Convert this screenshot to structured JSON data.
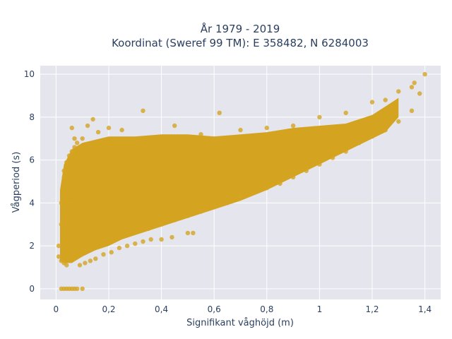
{
  "chart_data": {
    "type": "scatter",
    "title_lines": [
      "År 1979 - 2019",
      "Koordinat (Sweref 99 TM): E 358482, N 6284003"
    ],
    "xlabel": "Signifikant våghöjd (m)",
    "ylabel": "Vågperiod (s)",
    "xlim": [
      -0.06,
      1.46
    ],
    "ylim": [
      -0.5,
      10.4
    ],
    "x_ticks": [
      0,
      0.2,
      0.4,
      0.6,
      0.8,
      1,
      1.2,
      1.4
    ],
    "x_tick_labels": [
      "0",
      "0,2",
      "0,4",
      "0,6",
      "0,8",
      "1",
      "1,2",
      "1,4"
    ],
    "y_ticks": [
      0,
      2,
      4,
      6,
      8,
      10
    ],
    "y_tick_labels": [
      "0",
      "2",
      "4",
      "6",
      "8",
      "10"
    ],
    "grid": true,
    "colors": {
      "marker": "#D4A420",
      "plot_background": "#E5E5EE",
      "grid": "#ffffff",
      "text": "#2a3f5f"
    },
    "series": [
      {
        "marker_opacity": 0.8,
        "points": [
          [
            0.02,
            0
          ],
          [
            0.03,
            0
          ],
          [
            0.04,
            0
          ],
          [
            0.05,
            0
          ],
          [
            0.06,
            0
          ],
          [
            0.07,
            0
          ],
          [
            0.08,
            0
          ],
          [
            0.1,
            0
          ],
          [
            0.01,
            1.5
          ],
          [
            0.01,
            2.0
          ],
          [
            0.02,
            1.3
          ],
          [
            0.02,
            3.0
          ],
          [
            0.02,
            4.0
          ],
          [
            0.03,
            1.2
          ],
          [
            0.03,
            4.5
          ],
          [
            0.03,
            5.2
          ],
          [
            0.04,
            1.1
          ],
          [
            0.04,
            5.9
          ],
          [
            0.05,
            6.2
          ],
          [
            0.06,
            6.4
          ],
          [
            0.07,
            6.6
          ],
          [
            0.08,
            6.8
          ],
          [
            0.09,
            1.1
          ],
          [
            0.11,
            1.2
          ],
          [
            0.13,
            1.3
          ],
          [
            0.15,
            1.4
          ],
          [
            0.18,
            1.6
          ],
          [
            0.21,
            1.7
          ],
          [
            0.24,
            1.9
          ],
          [
            0.27,
            2.0
          ],
          [
            0.3,
            2.1
          ],
          [
            0.33,
            2.2
          ],
          [
            0.36,
            2.3
          ],
          [
            0.4,
            2.3
          ],
          [
            0.44,
            2.4
          ],
          [
            0.5,
            2.6
          ],
          [
            0.35,
            2.8
          ],
          [
            0.4,
            3.0
          ],
          [
            0.45,
            3.2
          ],
          [
            0.5,
            3.4
          ],
          [
            0.55,
            3.6
          ],
          [
            0.6,
            3.8
          ],
          [
            0.65,
            4.0
          ],
          [
            0.7,
            4.3
          ],
          [
            0.75,
            4.5
          ],
          [
            0.8,
            4.7
          ],
          [
            0.85,
            4.9
          ],
          [
            0.9,
            5.2
          ],
          [
            0.95,
            5.5
          ],
          [
            1.0,
            5.8
          ],
          [
            1.05,
            6.1
          ],
          [
            1.1,
            6.4
          ],
          [
            1.15,
            6.8
          ],
          [
            1.2,
            7.1
          ],
          [
            1.25,
            7.4
          ],
          [
            1.3,
            7.8
          ],
          [
            1.35,
            8.3
          ],
          [
            0.1,
            7.0
          ],
          [
            0.12,
            7.6
          ],
          [
            0.14,
            7.9
          ],
          [
            0.16,
            7.3
          ],
          [
            0.2,
            7.5
          ],
          [
            0.25,
            7.4
          ],
          [
            0.33,
            8.3
          ],
          [
            0.45,
            7.6
          ],
          [
            0.55,
            7.2
          ],
          [
            0.62,
            8.2
          ],
          [
            0.7,
            7.4
          ],
          [
            0.8,
            7.5
          ],
          [
            0.9,
            7.6
          ],
          [
            1.0,
            8.0
          ],
          [
            1.1,
            8.2
          ],
          [
            1.2,
            8.7
          ],
          [
            1.25,
            8.8
          ],
          [
            1.3,
            9.2
          ],
          [
            1.35,
            9.4
          ],
          [
            1.38,
            9.1
          ],
          [
            1.4,
            10.0
          ],
          [
            1.36,
            9.6
          ],
          [
            0.07,
            7.0
          ],
          [
            0.06,
            7.5
          ],
          [
            0.03,
            5.5
          ],
          [
            0.05,
            4.0
          ],
          [
            0.52,
            2.6
          ]
        ]
      }
    ]
  }
}
